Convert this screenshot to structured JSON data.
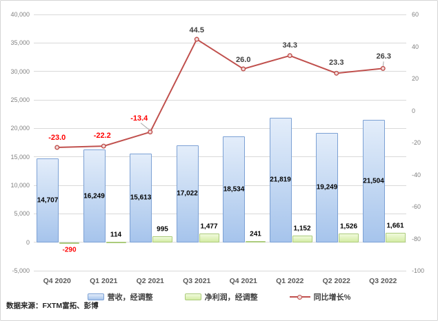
{
  "colors": {
    "revenue_fill_top": "#e3edfa",
    "revenue_fill_mid": "#c2d7f2",
    "revenue_fill_bottom": "#a6c4ec",
    "revenue_border": "#7ba0d4",
    "profit_fill_top": "#f0fadc",
    "profit_fill_bottom": "#d4ecA5",
    "profit_border": "#abcb7b",
    "line": "#c0504d",
    "marker_fill": "#f2dcdb",
    "label_dark": "#404040",
    "label_negative": "#ff0000",
    "axis_text": "#808080",
    "gridline": "#d9d9d9",
    "leader": "#a6a6a6"
  },
  "source_note": "数据来源：FXTM富拓、彭博",
  "chart_data": {
    "type": "combo",
    "categories": [
      "Q4 2020",
      "Q1 2021",
      "Q2 2021",
      "Q3 2021",
      "Q4 2021",
      "Q1 2022",
      "Q2 2022",
      "Q3 2022"
    ],
    "series": [
      {
        "name": "营收，经调整",
        "type": "bar",
        "axis": "left",
        "values": [
          14707,
          16249,
          15613,
          17022,
          18534,
          21819,
          19249,
          21504
        ],
        "labels": [
          "14,707",
          "16,249",
          "15,613",
          "17,022",
          "18,534",
          "21,819",
          "19,249",
          "21,504"
        ]
      },
      {
        "name": "净利润，经调整",
        "type": "bar",
        "axis": "left",
        "values": [
          -290,
          114,
          995,
          1477,
          241,
          1152,
          1526,
          1661
        ],
        "labels": [
          "-290",
          "114",
          "995",
          "1,477",
          "241",
          "1,152",
          "1,526",
          "1,661"
        ]
      },
      {
        "name": "同比增长%",
        "type": "line",
        "axis": "right",
        "values": [
          -23.0,
          -22.2,
          -13.4,
          44.5,
          26.0,
          34.3,
          23.3,
          26.3
        ],
        "labels": [
          "-23.0",
          "-22.2",
          "-13.4",
          "44.5",
          "26.0",
          "34.3",
          "23.3",
          "26.3"
        ],
        "label_offsets": [
          [
            0,
            -14
          ],
          [
            -2,
            -15
          ],
          [
            -16,
            -20
          ],
          [
            0,
            -13
          ],
          [
            0,
            -13
          ],
          [
            0,
            -15
          ],
          [
            0,
            -15
          ],
          [
            1,
            -17
          ]
        ],
        "label_leader_indexes": [
          2,
          7
        ]
      }
    ],
    "left_axis": {
      "min": -5000,
      "max": 40000,
      "step": 5000,
      "ticks": [
        "40,000",
        "35,000",
        "30,000",
        "25,000",
        "20,000",
        "15,000",
        "10,000",
        "5,000",
        "0",
        "-5,000"
      ]
    },
    "right_axis": {
      "min": -100,
      "max": 60,
      "step": 20,
      "ticks": [
        "60",
        "40",
        "20",
        "0",
        "-20",
        "-40",
        "-60",
        "-80",
        "-100"
      ]
    },
    "grid": true,
    "legend_position": "bottom"
  }
}
